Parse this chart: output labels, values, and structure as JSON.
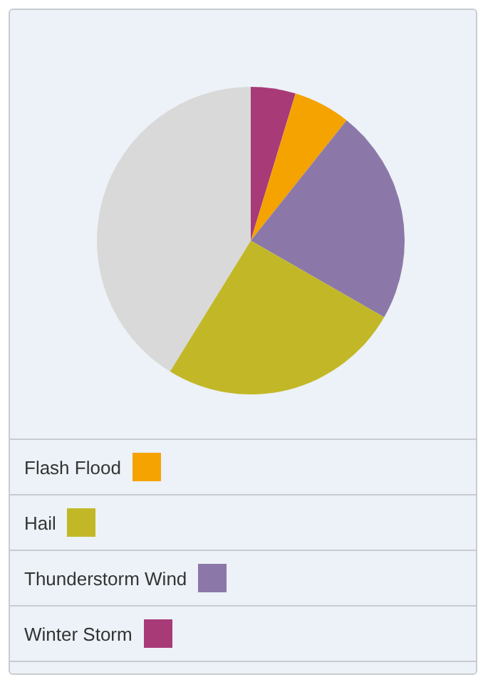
{
  "chart_data": {
    "type": "pie",
    "categories": [
      "Winter Storm",
      "Flash Flood",
      "Thunderstorm Wind",
      "Hail",
      null
    ],
    "values": [
      4.7,
      6.0,
      22.6,
      25.5,
      41.2
    ],
    "colors": [
      "#a83a78",
      "#f5a300",
      "#8c78a8",
      "#c2b827",
      "#d9d9d9"
    ],
    "legend": "bottom"
  }
}
